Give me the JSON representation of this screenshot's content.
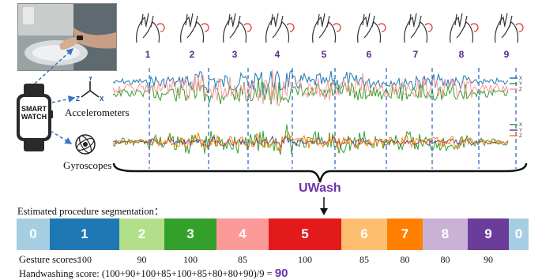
{
  "watch": {
    "line1": "SMART",
    "line2": "WATCH"
  },
  "sensors": {
    "accel": "Accelerometers",
    "gyro": "Gyroscopes"
  },
  "axes": {
    "x": "X",
    "y": "Y",
    "z": "Z"
  },
  "legend": {
    "x": "X",
    "y": "Y",
    "z": "Z"
  },
  "steps": [
    "1",
    "2",
    "3",
    "4",
    "5",
    "6",
    "7",
    "8",
    "9"
  ],
  "title": "UWash",
  "segmentation_label": "Estimated procedure segmentation：",
  "segments": [
    {
      "label": "0",
      "color": "#a6cee3",
      "width": 42
    },
    {
      "label": "1",
      "color": "#1f78b4",
      "width": 88
    },
    {
      "label": "2",
      "color": "#b2df8a",
      "width": 57
    },
    {
      "label": "3",
      "color": "#33a02c",
      "width": 66
    },
    {
      "label": "4",
      "color": "#fb9a99",
      "width": 66
    },
    {
      "label": "5",
      "color": "#e31a1c",
      "width": 92
    },
    {
      "label": "6",
      "color": "#fdbf6f",
      "width": 58
    },
    {
      "label": "7",
      "color": "#ff7f00",
      "width": 45
    },
    {
      "label": "8",
      "color": "#cab2d6",
      "width": 57
    },
    {
      "label": "9",
      "color": "#6a3d9a",
      "width": 52
    },
    {
      "label": "0",
      "color": "#a6cee3",
      "width": 25
    }
  ],
  "gesture_scores_label": "Gesture scores:",
  "gesture_scores": [
    "100",
    "90",
    "100",
    "85",
    "100",
    "85",
    "80",
    "80",
    "90"
  ],
  "handwashing_label": "Handwashing score: (100+90+100+85+100+85+80+80+90)/9 = ",
  "handwashing_value": "90",
  "accel_colors": {
    "x": "#1f78b4",
    "y": "#33a02c",
    "z": "#fb9a99"
  },
  "gyro_colors": {
    "x": "#33a02c",
    "y": "#6a3d9a",
    "z": "#ff7f00"
  }
}
